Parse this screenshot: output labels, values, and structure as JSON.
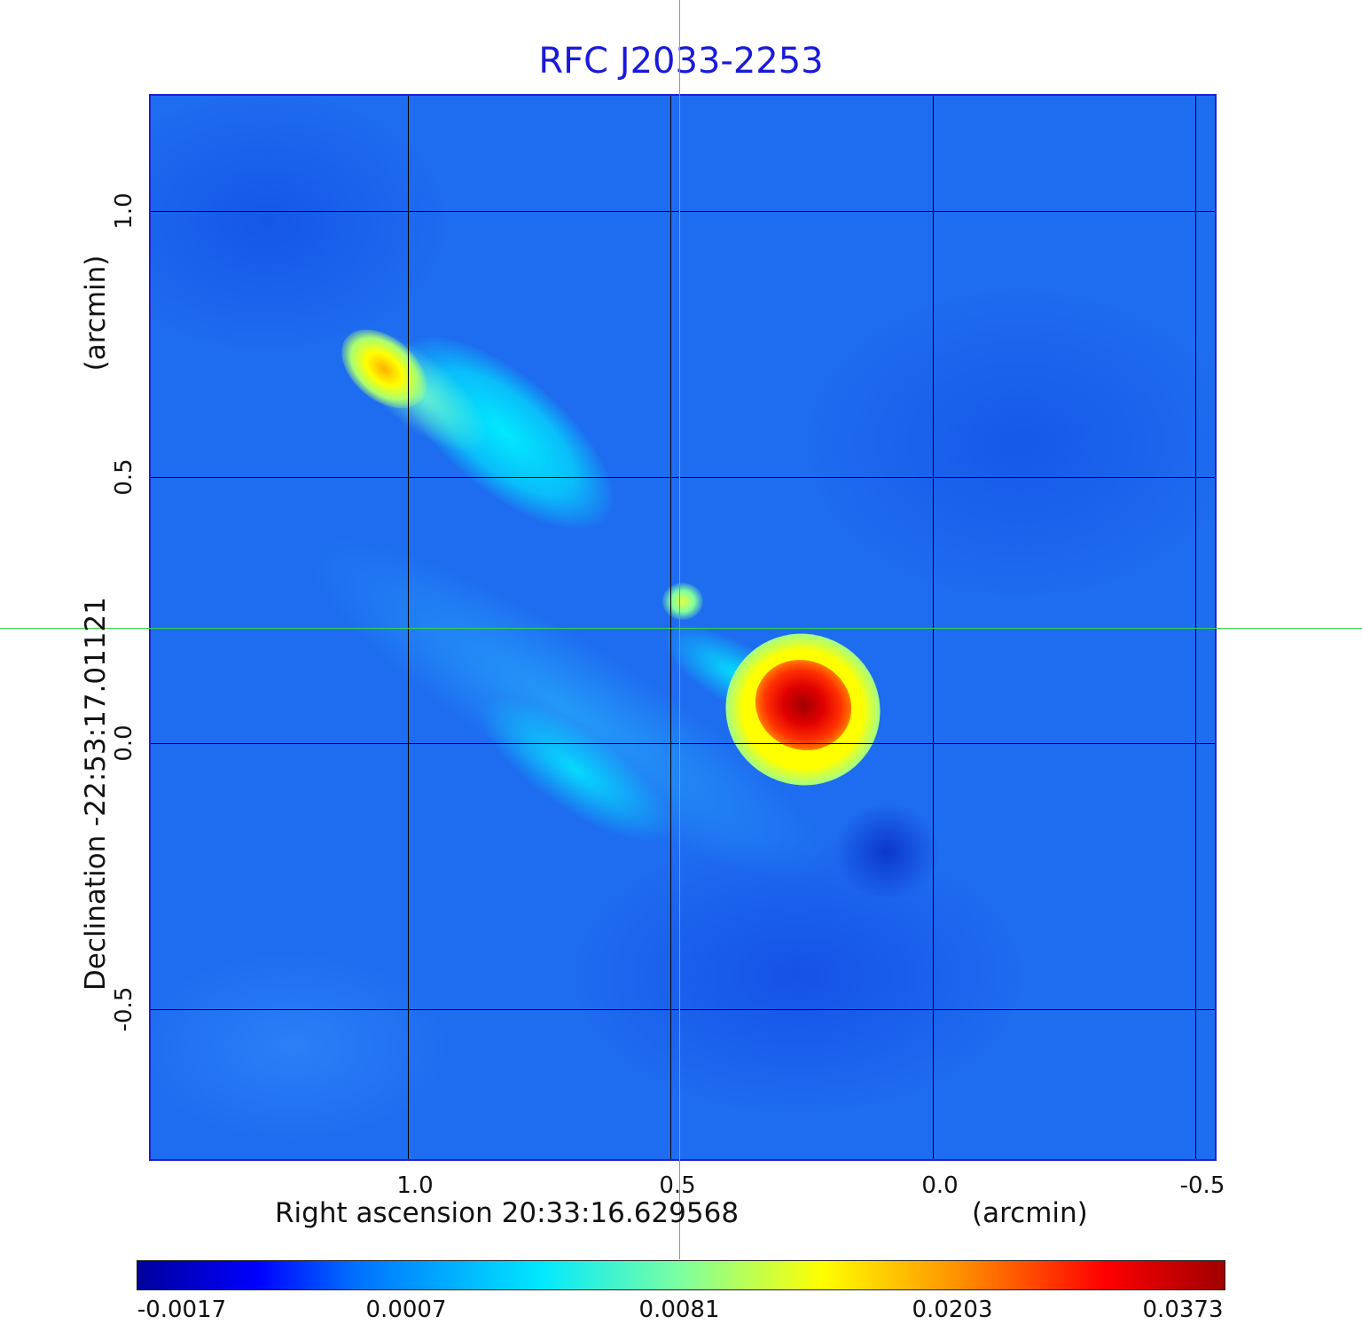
{
  "chart_data": {
    "type": "heatmap",
    "title": "RFC J2033-2253",
    "xlabel": "Right ascension  20:33:16.629568",
    "xunit": "(arcmin)",
    "ylabel": "Declination  -22:53:17.01121",
    "yunit": "(arcmin)",
    "x_ticks": [
      "1.0",
      "0.5",
      "0.0",
      "-0.5"
    ],
    "x_tick_values": [
      1.0,
      0.5,
      0.0,
      -0.5
    ],
    "y_ticks": [
      "1.0",
      "0.5",
      "0.0",
      "-0.5"
    ],
    "y_tick_values": [
      1.0,
      0.5,
      0.0,
      -0.5
    ],
    "xlim": [
      1.49,
      -0.54
    ],
    "ylim": [
      -0.78,
      1.22
    ],
    "x_direction": "decreasing to the right",
    "grid": true,
    "crosshair": {
      "x": 0.48,
      "y": 0.22,
      "color": "#37d24a"
    },
    "colorbar": {
      "placement": "bottom",
      "colormap": "jet",
      "tick_labels": [
        "-0.0017",
        "0.0007",
        "0.0081",
        "0.0203",
        "0.0373"
      ],
      "tick_values": [
        -0.0017,
        0.0007,
        0.0081,
        0.0203,
        0.0373
      ]
    },
    "features": [
      {
        "name": "north-lobe-hotspot",
        "x": 1.08,
        "y": 0.72,
        "value": 0.025
      },
      {
        "name": "north-lobe-jet",
        "x": 0.85,
        "y": 0.55,
        "value": 0.005
      },
      {
        "name": "core",
        "x": 0.49,
        "y": 0.22,
        "value": 0.01
      },
      {
        "name": "south-lobe-hotspot",
        "x": 0.23,
        "y": 0.03,
        "value": 0.037
      },
      {
        "name": "south-tail-emission",
        "x": 0.68,
        "y": -0.05,
        "value": 0.004
      }
    ]
  },
  "colors": {
    "title": "#1a1adb",
    "background_field": "#1e6cf0",
    "frame": "#1f1fcf",
    "grid": "#000000"
  }
}
